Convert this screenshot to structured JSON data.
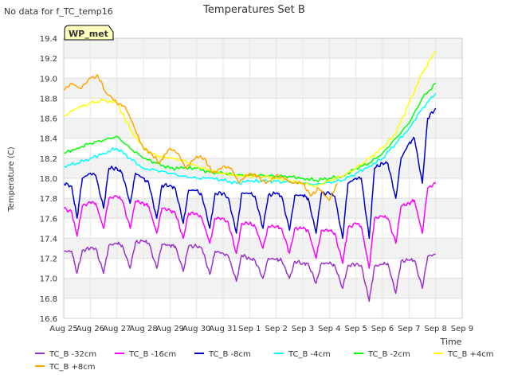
{
  "no_data_note": "No data for f_TC_temp16",
  "chart_data": {
    "type": "line",
    "title": "Temperatures Set B",
    "xlabel": "Time",
    "ylabel": "Temperature (C)",
    "station_badge": "WP_met",
    "ylim": [
      16.6,
      19.4
    ],
    "y_ticks": [
      16.6,
      16.8,
      17.0,
      17.2,
      17.4,
      17.6,
      17.8,
      18.0,
      18.2,
      18.4,
      18.6,
      18.8,
      19.0,
      19.2,
      19.4
    ],
    "xlim": [
      0,
      15
    ],
    "x_tick_labels": [
      "Aug 25",
      "Aug 26",
      "Aug 27",
      "Aug 28",
      "Aug 29",
      "Aug 30",
      "Aug 31",
      "Sep 1",
      "Sep 2",
      "Sep 3",
      "Sep 4",
      "Sep 5",
      "Sep 6",
      "Sep 7",
      "Sep 8",
      "Sep 9"
    ],
    "x_unit": "days since Aug 25",
    "grid": true,
    "legend_position": "bottom",
    "series": [
      {
        "name": "TC_B -32cm",
        "color": "#9a32cd",
        "x": [
          0,
          0.3,
          0.5,
          0.7,
          1,
          1.2,
          1.5,
          1.7,
          2,
          2.2,
          2.5,
          2.7,
          3,
          3.2,
          3.5,
          3.7,
          4,
          4.2,
          4.5,
          4.7,
          5,
          5.2,
          5.5,
          5.7,
          6,
          6.2,
          6.5,
          6.7,
          7,
          7.2,
          7.5,
          7.7,
          8,
          8.2,
          8.5,
          8.7,
          9,
          9.2,
          9.5,
          9.7,
          10,
          10.2,
          10.5,
          10.7,
          11,
          11.2,
          11.5,
          11.7,
          12,
          12.2,
          12.5,
          12.7,
          13,
          13.2,
          13.5,
          13.7,
          14
        ],
        "y": [
          17.27,
          17.27,
          17.05,
          17.28,
          17.3,
          17.3,
          17.05,
          17.33,
          17.35,
          17.33,
          17.1,
          17.36,
          17.37,
          17.35,
          17.1,
          17.34,
          17.33,
          17.32,
          17.07,
          17.32,
          17.32,
          17.3,
          17.04,
          17.27,
          17.25,
          17.22,
          16.97,
          17.23,
          17.2,
          17.18,
          17.0,
          17.2,
          17.19,
          17.18,
          17.0,
          17.17,
          17.15,
          17.15,
          16.95,
          17.15,
          17.15,
          17.13,
          16.9,
          17.13,
          17.14,
          17.13,
          16.77,
          17.12,
          17.14,
          17.15,
          16.85,
          17.17,
          17.18,
          17.18,
          16.9,
          17.22,
          17.24
        ]
      },
      {
        "name": "TC_B -16cm",
        "color": "#ff00ff",
        "x": [
          0,
          0.3,
          0.5,
          0.7,
          1,
          1.2,
          1.5,
          1.7,
          2,
          2.2,
          2.5,
          2.7,
          3,
          3.2,
          3.5,
          3.7,
          4,
          4.2,
          4.5,
          4.7,
          5,
          5.2,
          5.5,
          5.7,
          6,
          6.2,
          6.5,
          6.7,
          7,
          7.2,
          7.5,
          7.7,
          8,
          8.2,
          8.5,
          8.7,
          9,
          9.2,
          9.5,
          9.7,
          10,
          10.2,
          10.5,
          10.7,
          11,
          11.2,
          11.5,
          11.7,
          12,
          12.2,
          12.5,
          12.7,
          13,
          13.2,
          13.5,
          13.7,
          14
        ],
        "y": [
          17.7,
          17.66,
          17.42,
          17.72,
          17.76,
          17.75,
          17.5,
          17.8,
          17.82,
          17.78,
          17.5,
          17.77,
          17.75,
          17.72,
          17.45,
          17.7,
          17.68,
          17.65,
          17.4,
          17.65,
          17.65,
          17.6,
          17.35,
          17.6,
          17.6,
          17.55,
          17.25,
          17.55,
          17.55,
          17.52,
          17.3,
          17.52,
          17.52,
          17.5,
          17.25,
          17.5,
          17.5,
          17.48,
          17.2,
          17.48,
          17.48,
          17.45,
          17.15,
          17.5,
          17.55,
          17.52,
          17.1,
          17.6,
          17.62,
          17.6,
          17.35,
          17.72,
          17.75,
          17.78,
          17.45,
          17.9,
          17.95
        ]
      },
      {
        "name": "TC_B -8cm",
        "color": "#0000cd",
        "x": [
          0,
          0.3,
          0.5,
          0.7,
          1,
          1.2,
          1.5,
          1.7,
          2,
          2.2,
          2.5,
          2.7,
          3,
          3.2,
          3.5,
          3.7,
          4,
          4.2,
          4.5,
          4.7,
          5,
          5.2,
          5.5,
          5.7,
          6,
          6.2,
          6.5,
          6.7,
          7,
          7.2,
          7.5,
          7.7,
          8,
          8.2,
          8.5,
          8.7,
          9,
          9.2,
          9.5,
          9.7,
          10,
          10.2,
          10.5,
          10.7,
          11,
          11.2,
          11.5,
          11.7,
          12,
          12.2,
          12.5,
          12.7,
          13,
          13.2,
          13.5,
          13.7,
          14
        ],
        "y": [
          17.95,
          17.92,
          17.6,
          18.0,
          18.05,
          18.03,
          17.7,
          18.1,
          18.1,
          18.05,
          17.75,
          18.05,
          18.0,
          17.95,
          17.6,
          17.93,
          17.93,
          17.9,
          17.55,
          17.88,
          17.88,
          17.83,
          17.5,
          17.85,
          17.85,
          17.8,
          17.45,
          17.85,
          17.85,
          17.82,
          17.5,
          17.83,
          17.85,
          17.82,
          17.48,
          17.83,
          17.83,
          17.8,
          17.45,
          17.85,
          17.85,
          17.82,
          17.4,
          17.95,
          18.0,
          18.0,
          17.4,
          18.1,
          18.15,
          18.15,
          17.8,
          18.2,
          18.35,
          18.4,
          17.95,
          18.6,
          18.7
        ]
      },
      {
        "name": "TC_B -4cm",
        "color": "#00ffff",
        "x": [
          0,
          0.5,
          1,
          1.5,
          2,
          2.5,
          3,
          3.5,
          4,
          4.5,
          5,
          5.5,
          6,
          6.5,
          7,
          7.5,
          8,
          8.5,
          9,
          9.5,
          10,
          10.5,
          11,
          11.5,
          12,
          12.5,
          13,
          13.5,
          14
        ],
        "y": [
          18.12,
          18.15,
          18.2,
          18.25,
          18.3,
          18.2,
          18.1,
          18.08,
          18.05,
          18.02,
          18.0,
          18.0,
          17.98,
          17.95,
          17.97,
          17.97,
          17.97,
          17.96,
          17.95,
          17.94,
          17.96,
          17.98,
          18.05,
          18.12,
          18.2,
          18.35,
          18.5,
          18.7,
          18.85
        ]
      },
      {
        "name": "TC_B -2cm",
        "color": "#00ff00",
        "x": [
          0,
          0.5,
          1,
          1.5,
          2,
          2.5,
          3,
          3.5,
          4,
          4.5,
          5,
          5.5,
          6,
          6.5,
          7,
          7.5,
          8,
          8.5,
          9,
          9.5,
          10,
          10.5,
          11,
          11.5,
          12,
          12.5,
          13,
          13.5,
          14
        ],
        "y": [
          18.25,
          18.3,
          18.35,
          18.38,
          18.42,
          18.3,
          18.2,
          18.15,
          18.1,
          18.1,
          18.1,
          18.06,
          18.05,
          18.03,
          18.03,
          18.03,
          18.02,
          18.02,
          18.0,
          17.98,
          18.0,
          18.02,
          18.1,
          18.15,
          18.25,
          18.4,
          18.55,
          18.8,
          18.95
        ]
      },
      {
        "name": "TC_B +4cm",
        "color": "#ffff00",
        "x": [
          0,
          0.5,
          1,
          1.5,
          2,
          2.3,
          2.6,
          3,
          3.5,
          4,
          4.5,
          5,
          5.5,
          6,
          6.5,
          7,
          7.5,
          8,
          8.5,
          9,
          9.5,
          10,
          10.5,
          11,
          11.5,
          12,
          12.5,
          13,
          13.5,
          14
        ],
        "y": [
          18.62,
          18.7,
          18.75,
          18.78,
          18.75,
          18.6,
          18.45,
          18.3,
          18.22,
          18.2,
          18.18,
          18.12,
          18.08,
          18.05,
          18.03,
          18.02,
          18.02,
          18.0,
          17.98,
          17.95,
          17.92,
          17.98,
          18.02,
          18.1,
          18.2,
          18.3,
          18.45,
          18.75,
          19.05,
          19.27
        ]
      },
      {
        "name": "TC_B +8cm",
        "color": "#ffa500",
        "x": [
          0,
          0.3,
          0.6,
          1,
          1.3,
          1.6,
          2,
          2.3,
          2.6,
          3,
          3.3,
          3.6,
          4,
          4.3,
          4.6,
          5,
          5.3,
          5.6,
          6,
          6.3,
          6.6,
          7,
          7.3,
          7.6,
          8,
          8.3,
          8.6,
          9,
          9.3,
          9.6,
          10,
          10.3
        ],
        "y": [
          18.88,
          18.95,
          18.9,
          19.0,
          19.02,
          18.85,
          18.75,
          18.72,
          18.55,
          18.3,
          18.25,
          18.15,
          18.3,
          18.25,
          18.1,
          18.22,
          18.2,
          18.05,
          18.12,
          18.1,
          17.95,
          18.05,
          18.02,
          17.95,
          18.03,
          18.0,
          17.95,
          17.95,
          17.82,
          17.9,
          17.78,
          17.95
        ]
      }
    ]
  }
}
